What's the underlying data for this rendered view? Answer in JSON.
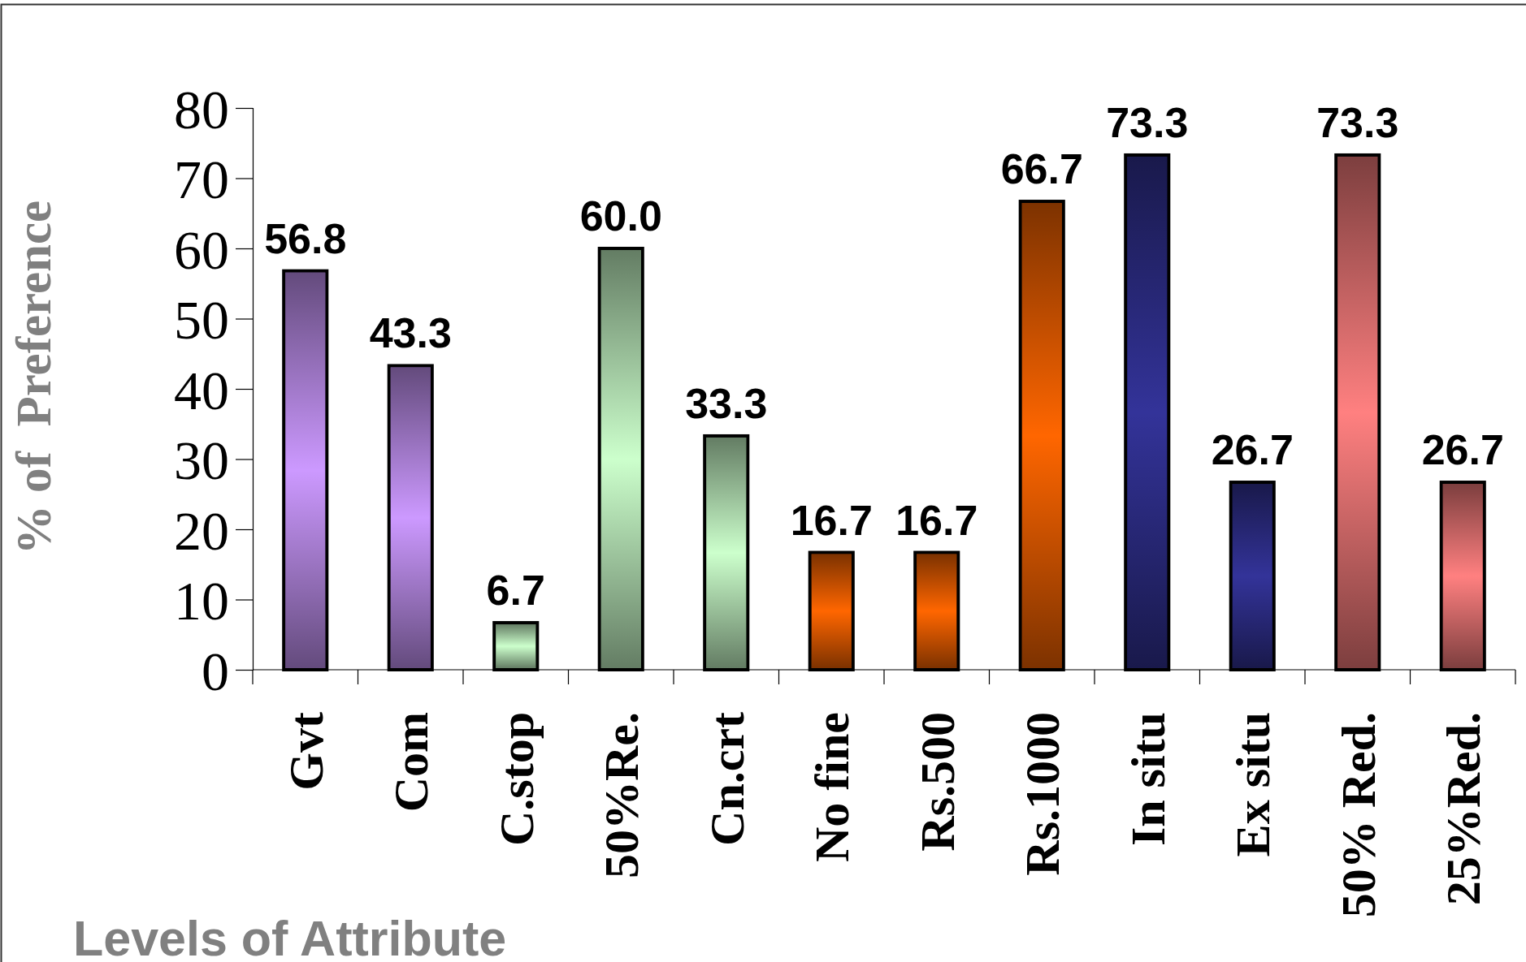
{
  "chart_data": {
    "type": "bar",
    "xlabel": "Levels of Attribute",
    "ylabel": "% of  Preference",
    "categories": [
      "Gvt",
      "Com",
      "C.stop",
      "50%Re.",
      "Cn.crt",
      "No fine",
      "Rs.500",
      "Rs.1000",
      "In situ",
      "Ex situ",
      "50% Red.",
      "25%Red."
    ],
    "values": [
      56.8,
      43.3,
      6.7,
      60.0,
      33.3,
      16.7,
      16.7,
      66.7,
      73.3,
      26.7,
      73.3,
      26.7
    ],
    "value_labels": [
      "56.8",
      "43.3",
      "6.7",
      "60.0",
      "33.3",
      "16.7",
      "16.7",
      "66.7",
      "73.3",
      "26.7",
      "73.3",
      "26.7"
    ],
    "colors": [
      "#cc99ff",
      "#cc99ff",
      "#ccffcc",
      "#ccffcc",
      "#ccffcc",
      "#ff6600",
      "#ff6600",
      "#ff6600",
      "#333399",
      "#333399",
      "#ff8080",
      "#ff8080"
    ],
    "ylim": [
      0,
      80
    ],
    "yticks": [
      0,
      10,
      20,
      30,
      40,
      50,
      60,
      70,
      80
    ]
  }
}
